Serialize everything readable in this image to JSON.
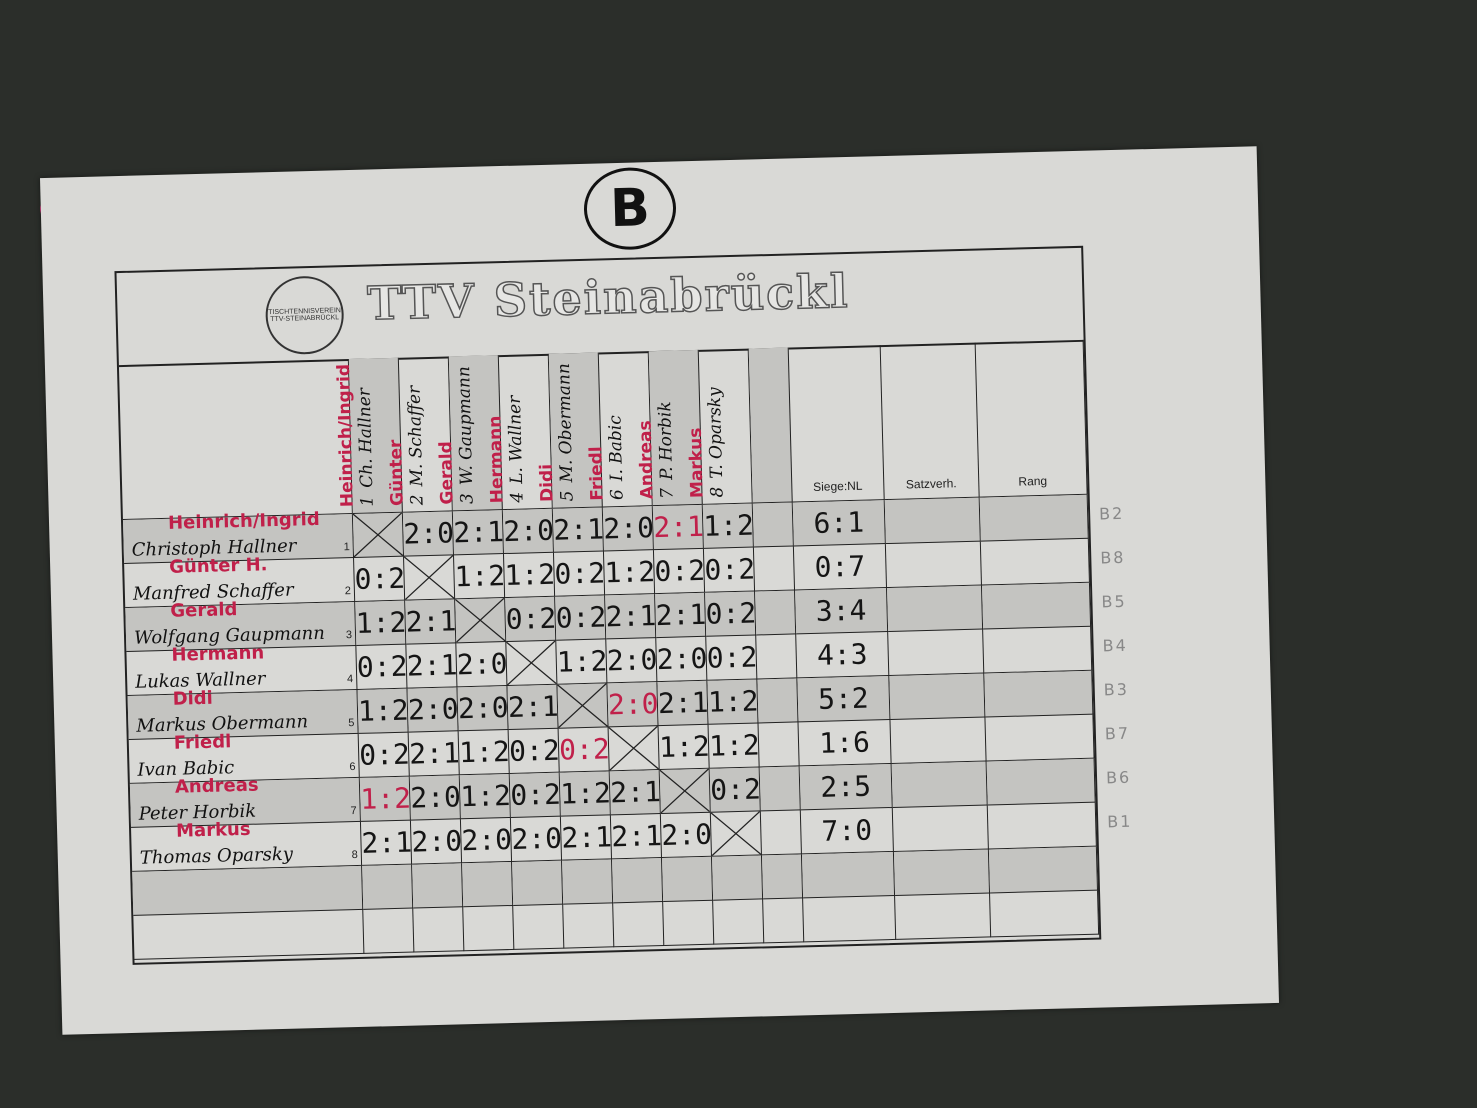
{
  "sheet": {
    "group_label": "B",
    "club_name": "TTV Steinabrückl",
    "logo_text": "TISCHTENNISVEREIN TTV-STEINABRÜCKL",
    "headers": {
      "wins": "Siege:NL",
      "sets": "Satzverh.",
      "rank": "Rang"
    },
    "players": [
      {
        "num": "1",
        "name": "Christoph Hallner",
        "short": "Ch. Hallner",
        "nick": "Heinrich/Ingrid",
        "col_nick": "Heinrich/Ingrid",
        "scores": [
          "X",
          "2:0",
          "2:1",
          "2:0",
          "2:1",
          "2:0",
          "2:1",
          "1:2"
        ],
        "red": [
          6
        ],
        "wins": "6:1",
        "side_rank": "2"
      },
      {
        "num": "2",
        "name": "Manfred Schaffer",
        "short": "M. Schaffer",
        "nick": "Günter H.",
        "col_nick": "Günter",
        "scores": [
          "0:2",
          "X",
          "1:2",
          "1:2",
          "0:2",
          "1:2",
          "0:2",
          "0:2"
        ],
        "red": [],
        "wins": "0:7",
        "side_rank": "8"
      },
      {
        "num": "3",
        "name": "Wolfgang Gaupmann",
        "short": "W. Gaupmann",
        "nick": "Gerald",
        "col_nick": "Gerald",
        "scores": [
          "1:2",
          "2:1",
          "X",
          "0:2",
          "0:2",
          "2:1",
          "2:1",
          "0:2"
        ],
        "red": [],
        "wins": "3:4",
        "side_rank": "5"
      },
      {
        "num": "4",
        "name": "Lukas Wallner",
        "short": "L. Wallner",
        "nick": "Hermann",
        "col_nick": "Hermann",
        "scores": [
          "0:2",
          "2:1",
          "2:0",
          "X",
          "1:2",
          "2:0",
          "2:0",
          "0:2"
        ],
        "red": [],
        "wins": "4:3",
        "side_rank": "4"
      },
      {
        "num": "5",
        "name": "Markus Obermann",
        "short": "M. Obermann",
        "nick": "Didi",
        "col_nick": "Didi",
        "scores": [
          "1:2",
          "2:0",
          "2:0",
          "2:1",
          "X",
          "2:0",
          "2:1",
          "1:2"
        ],
        "red": [
          5
        ],
        "wins": "5:2",
        "side_rank": "3"
      },
      {
        "num": "6",
        "name": "Ivan Babic",
        "short": "I. Babic",
        "nick": "Friedl",
        "col_nick": "Friedl",
        "scores": [
          "0:2",
          "2:1",
          "1:2",
          "0:2",
          "0:2",
          "X",
          "1:2",
          "1:2"
        ],
        "red": [
          4
        ],
        "wins": "1:6",
        "side_rank": "7"
      },
      {
        "num": "7",
        "name": "Peter Horbik",
        "short": "P. Horbik",
        "nick": "Andreas",
        "col_nick": "Andreas",
        "scores": [
          "1:2",
          "2:0",
          "1:2",
          "0:2",
          "1:2",
          "2:1",
          "X",
          "0:2"
        ],
        "red": [
          0
        ],
        "wins": "2:5",
        "side_rank": "6"
      },
      {
        "num": "8",
        "name": "Thomas Oparsky",
        "short": "T. Oparsky",
        "nick": "Markus",
        "col_nick": "Markus",
        "scores": [
          "2:1",
          "2:0",
          "2:0",
          "2:0",
          "2:1",
          "2:1",
          "2:0",
          "X"
        ],
        "red": [],
        "wins": "7:0",
        "side_rank": "1"
      }
    ],
    "side_group_prefix": "B"
  },
  "colors": {
    "pin_left": "#d81b72",
    "pin_right": "#1f3fb0",
    "ink_red": "#c0204a",
    "board": "#2b2e2a"
  }
}
